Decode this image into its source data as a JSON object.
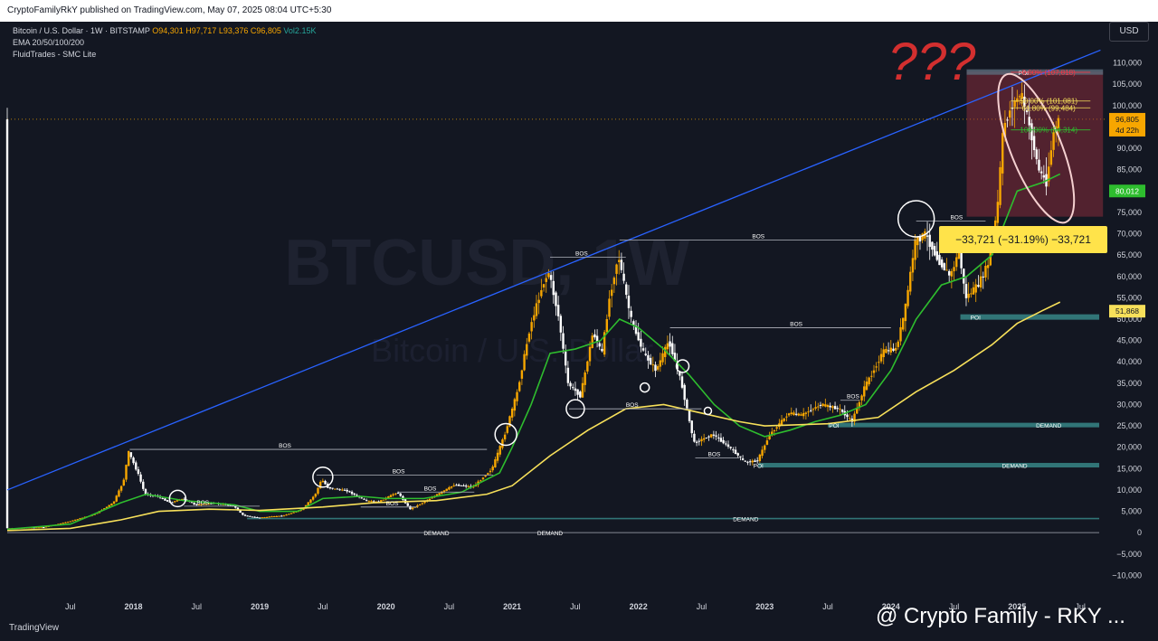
{
  "header": {
    "published": "CryptoFamilyRkY published on TradingView.com, May 07, 2025 08:04 UTC+5:30"
  },
  "legend": {
    "symbol": "Bitcoin / U.S. Dollar · 1W · BITSTAMP",
    "open": "O94,301",
    "high": "H97,717",
    "low": "L93,376",
    "close": "C96,805",
    "vol": "Vol2.15K",
    "ema": "EMA 20/50/100/200",
    "smc": "FluidTrades - SMC Lite"
  },
  "axis": {
    "currency": "USD"
  },
  "footer": {
    "brand": "TradingView",
    "watermark": "@ Crypto Family - RKY ..."
  },
  "watermark": {
    "main": "BTCUSD, 1W",
    "sub": "Bitcoin / U.S. Dollar"
  },
  "chart_data": {
    "type": "line",
    "title": "Bitcoin / U.S. Dollar · 1W · BITSTAMP",
    "ylim": [
      -15000,
      115000
    ],
    "y_ticks": [
      110000,
      105000,
      100000,
      95000,
      90000,
      85000,
      80000,
      75000,
      70000,
      65000,
      60000,
      55000,
      50000,
      45000,
      40000,
      35000,
      30000,
      25000,
      20000,
      15000,
      10000,
      5000,
      0,
      -5000,
      -10000
    ],
    "y_tick_labels": [
      "110,000",
      "105,000",
      "100,000",
      "95,000",
      "90,000",
      "85,000",
      "80,000",
      "75,000",
      "70,000",
      "65,000",
      "60,000",
      "55,000",
      "50,000",
      "45,000",
      "40,000",
      "35,000",
      "30,000",
      "25,000",
      "20,000",
      "15,000",
      "10,000",
      "5,000",
      "0",
      "−5,000",
      "−10,000"
    ],
    "x_ticks": [
      2017.5,
      2018.0,
      2018.5,
      2019.0,
      2019.5,
      2020.0,
      2020.5,
      2021.0,
      2021.5,
      2022.0,
      2022.5,
      2023.0,
      2023.5,
      2024.0,
      2024.5,
      2025.0,
      2025.5
    ],
    "x_tick_labels": [
      "Jul",
      "2018",
      "Jul",
      "2019",
      "Jul",
      "2020",
      "Jul",
      "2021",
      "Jul",
      "2022",
      "Jul",
      "2023",
      "Jul",
      "2024",
      "Jul",
      "2025",
      "Jul"
    ],
    "xlim": [
      2017.0,
      2025.7
    ],
    "series": [
      {
        "values": [
          [
            2017.0,
            1000
          ],
          [
            2017.3,
            1300
          ],
          [
            2017.5,
            2600
          ],
          [
            2017.7,
            4300
          ],
          [
            2017.85,
            7000
          ],
          [
            2017.93,
            12000
          ],
          [
            2017.97,
            19000
          ],
          [
            2018.05,
            13500
          ],
          [
            2018.1,
            9000
          ],
          [
            2018.2,
            8500
          ],
          [
            2018.3,
            7000
          ],
          [
            2018.4,
            8000
          ],
          [
            2018.5,
            6500
          ],
          [
            2018.65,
            6900
          ],
          [
            2018.8,
            6300
          ],
          [
            2018.88,
            4000
          ],
          [
            2019.0,
            3500
          ],
          [
            2019.2,
            4000
          ],
          [
            2019.35,
            5500
          ],
          [
            2019.45,
            9000
          ],
          [
            2019.5,
            12500
          ],
          [
            2019.55,
            10500
          ],
          [
            2019.7,
            9800
          ],
          [
            2019.85,
            7500
          ],
          [
            2019.95,
            7200
          ],
          [
            2020.1,
            9500
          ],
          [
            2020.2,
            5500
          ],
          [
            2020.3,
            7000
          ],
          [
            2020.45,
            9500
          ],
          [
            2020.55,
            11200
          ],
          [
            2020.7,
            10700
          ],
          [
            2020.85,
            15000
          ],
          [
            2020.95,
            23000
          ],
          [
            2021.05,
            33000
          ],
          [
            2021.15,
            48000
          ],
          [
            2021.25,
            58000
          ],
          [
            2021.3,
            61000
          ],
          [
            2021.38,
            50000
          ],
          [
            2021.45,
            35000
          ],
          [
            2021.55,
            32000
          ],
          [
            2021.65,
            47000
          ],
          [
            2021.72,
            42000
          ],
          [
            2021.78,
            55000
          ],
          [
            2021.85,
            65000
          ],
          [
            2021.95,
            50000
          ],
          [
            2022.05,
            42000
          ],
          [
            2022.15,
            38000
          ],
          [
            2022.25,
            45000
          ],
          [
            2022.35,
            35000
          ],
          [
            2022.45,
            21000
          ],
          [
            2022.6,
            23000
          ],
          [
            2022.75,
            19500
          ],
          [
            2022.85,
            16500
          ],
          [
            2022.95,
            16800
          ],
          [
            2023.05,
            23000
          ],
          [
            2023.2,
            28000
          ],
          [
            2023.3,
            27500
          ],
          [
            2023.45,
            30000
          ],
          [
            2023.6,
            29000
          ],
          [
            2023.7,
            26000
          ],
          [
            2023.8,
            34000
          ],
          [
            2023.95,
            42500
          ],
          [
            2024.05,
            43000
          ],
          [
            2024.12,
            52000
          ],
          [
            2024.2,
            68000
          ],
          [
            2024.28,
            70000
          ],
          [
            2024.38,
            64000
          ],
          [
            2024.48,
            60000
          ],
          [
            2024.55,
            66000
          ],
          [
            2024.6,
            55000
          ],
          [
            2024.7,
            58000
          ],
          [
            2024.78,
            63000
          ],
          [
            2024.85,
            75000
          ],
          [
            2024.9,
            95000
          ],
          [
            2024.97,
            100000
          ],
          [
            2025.04,
            103000
          ],
          [
            2025.1,
            96000
          ],
          [
            2025.18,
            85000
          ],
          [
            2025.24,
            82000
          ],
          [
            2025.3,
            94000
          ],
          [
            2025.34,
            96805
          ]
        ]
      },
      {
        "name": "EMA 20",
        "values": [
          [
            2017.0,
            800
          ],
          [
            2017.5,
            2000
          ],
          [
            2017.9,
            7000
          ],
          [
            2018.1,
            9000
          ],
          [
            2018.4,
            7500
          ],
          [
            2018.8,
            6500
          ],
          [
            2019.0,
            5000
          ],
          [
            2019.3,
            5000
          ],
          [
            2019.5,
            8000
          ],
          [
            2019.8,
            8500
          ],
          [
            2020.0,
            8000
          ],
          [
            2020.3,
            8000
          ],
          [
            2020.6,
            9500
          ],
          [
            2020.9,
            14000
          ],
          [
            2021.0,
            20000
          ],
          [
            2021.15,
            30000
          ],
          [
            2021.3,
            42000
          ],
          [
            2021.5,
            43000
          ],
          [
            2021.7,
            45000
          ],
          [
            2021.85,
            50000
          ],
          [
            2022.0,
            48000
          ],
          [
            2022.2,
            43000
          ],
          [
            2022.4,
            37000
          ],
          [
            2022.6,
            30000
          ],
          [
            2022.8,
            25000
          ],
          [
            2023.0,
            22500
          ],
          [
            2023.2,
            24000
          ],
          [
            2023.4,
            26000
          ],
          [
            2023.6,
            27500
          ],
          [
            2023.8,
            30000
          ],
          [
            2024.0,
            38000
          ],
          [
            2024.2,
            50000
          ],
          [
            2024.4,
            58000
          ],
          [
            2024.6,
            60000
          ],
          [
            2024.8,
            65000
          ],
          [
            2025.0,
            80000
          ],
          [
            2025.2,
            82000
          ],
          [
            2025.34,
            84000
          ]
        ]
      },
      {
        "name": "EMA 50",
        "values": [
          [
            2017.0,
            500
          ],
          [
            2017.5,
            1000
          ],
          [
            2017.9,
            3000
          ],
          [
            2018.2,
            5000
          ],
          [
            2018.6,
            5500
          ],
          [
            2019.0,
            5200
          ],
          [
            2019.5,
            6000
          ],
          [
            2019.9,
            7000
          ],
          [
            2020.4,
            7500
          ],
          [
            2020.8,
            9000
          ],
          [
            2021.0,
            11000
          ],
          [
            2021.3,
            18000
          ],
          [
            2021.6,
            24000
          ],
          [
            2021.9,
            29000
          ],
          [
            2022.2,
            30000
          ],
          [
            2022.5,
            28000
          ],
          [
            2022.8,
            26000
          ],
          [
            2023.0,
            25000
          ],
          [
            2023.5,
            25500
          ],
          [
            2023.9,
            27000
          ],
          [
            2024.2,
            33000
          ],
          [
            2024.5,
            38000
          ],
          [
            2024.8,
            44000
          ],
          [
            2025.0,
            49000
          ],
          [
            2025.2,
            52000
          ],
          [
            2025.34,
            54000
          ]
        ]
      }
    ],
    "annotations": {
      "bos_label": "BOS",
      "demand_label": "DEMAND",
      "poi_label": "POI",
      "measure_label": "−33,721 (−31.19%) −33,721",
      "fib_labels": [
        "0.00% (107,818)",
        "50.00% (101,081)",
        "61.80% (99,484)",
        "100.00% (94,314)"
      ],
      "price_tag": "96,805",
      "countdown": "4d 22h",
      "ema_tag_1": "80,012",
      "ema_tag_2": "51,868",
      "scribble": "???"
    },
    "colors": {
      "up": "#f7a600",
      "down": "#ffffff",
      "trendline": "#2962ff",
      "ema_fast": "#2ebd2e",
      "ema_slow": "#f7e05a",
      "demand": "#3a8d8d",
      "zone_red": "#a03040",
      "measure_bg": "#ffe34a"
    }
  }
}
